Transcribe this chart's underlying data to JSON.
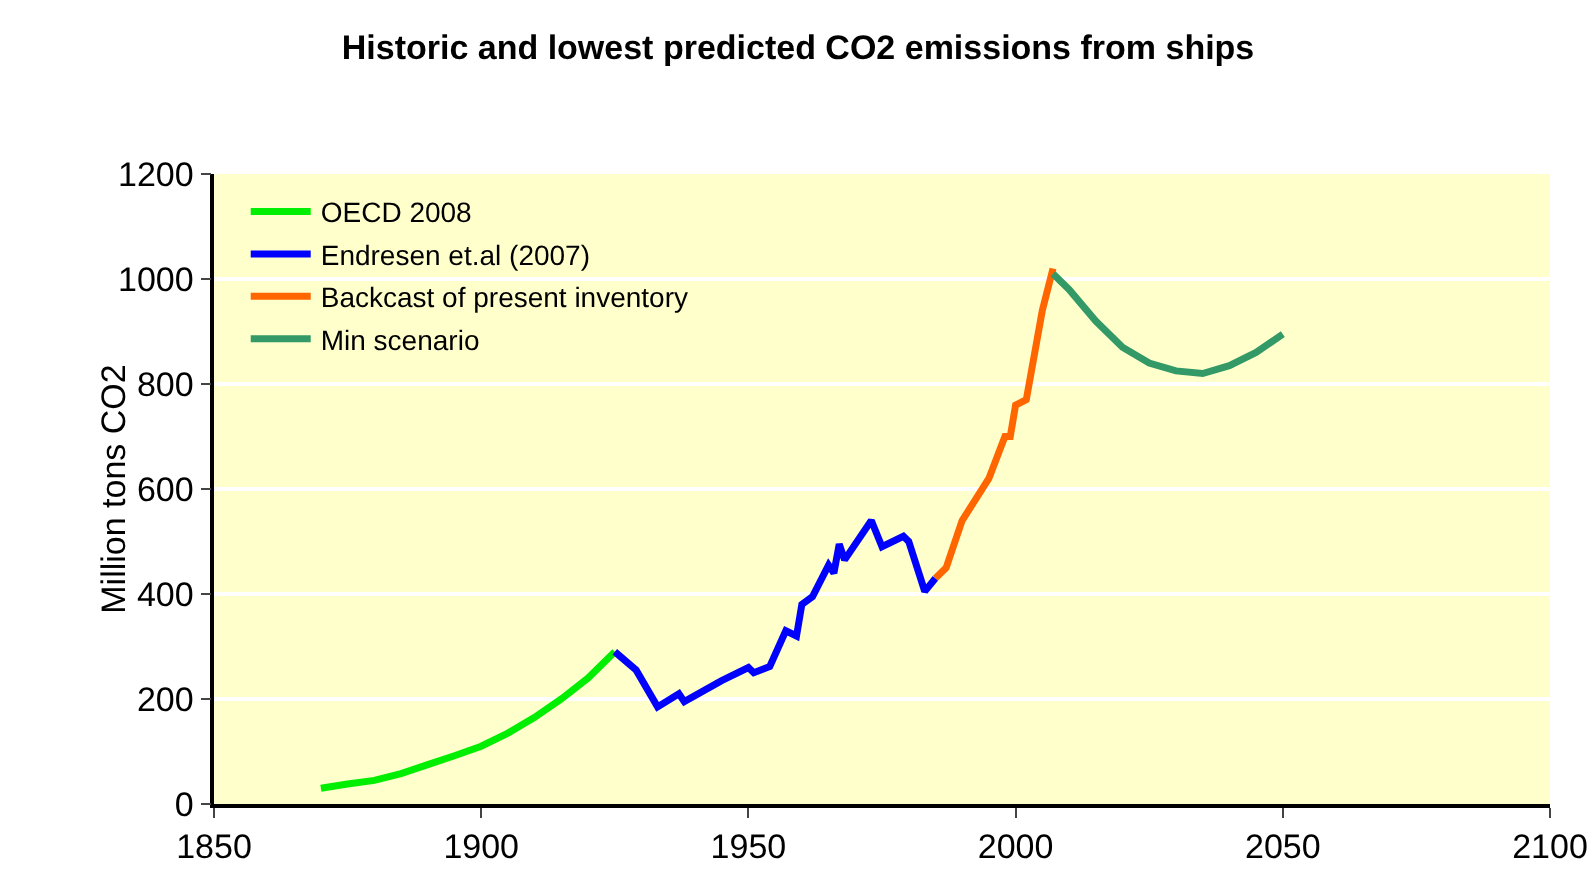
{
  "chart_data": {
    "type": "line",
    "title": "Historic and lowest predicted CO2 emissions from ships",
    "ylabel": "Million tons CO2",
    "xlim": [
      1850,
      2100
    ],
    "xticks": [
      1850,
      1900,
      1950,
      2000,
      2050,
      2100
    ],
    "ylim": [
      0,
      1200
    ],
    "yticks": [
      0,
      200,
      400,
      600,
      800,
      1000,
      1200
    ],
    "grid": "y",
    "legend": "top left",
    "marker": "none",
    "line_style": "solid",
    "series": [
      {
        "name": "OECD 2008",
        "color": "#00ee00",
        "x": [
          1870,
          1875,
          1880,
          1885,
          1890,
          1895,
          1900,
          1905,
          1910,
          1915,
          1920,
          1925
        ],
        "values": [
          30,
          38,
          45,
          58,
          75,
          92,
          110,
          135,
          165,
          200,
          240,
          290
        ]
      },
      {
        "name": "Endresen et.al (2007)",
        "color": "#0000ff",
        "x": [
          1925,
          1929,
          1933,
          1937,
          1938,
          1945,
          1950,
          1951,
          1954,
          1957,
          1959,
          1960,
          1962,
          1965,
          1966,
          1967,
          1968,
          1973,
          1975,
          1979,
          1980,
          1983,
          1985
        ],
        "values": [
          290,
          255,
          185,
          210,
          195,
          235,
          260,
          250,
          262,
          330,
          320,
          380,
          395,
          455,
          440,
          495,
          465,
          540,
          490,
          510,
          500,
          405,
          430
        ]
      },
      {
        "name": "Backcast of present inventory",
        "color": "#ff6600",
        "x": [
          1985,
          1987,
          1990,
          1995,
          1998,
          1999,
          2000,
          2002,
          2005,
          2007
        ],
        "values": [
          430,
          450,
          540,
          620,
          700,
          700,
          760,
          770,
          940,
          1020
        ]
      },
      {
        "name": "Min scenario",
        "color": "#339966",
        "x": [
          2007,
          2010,
          2015,
          2020,
          2025,
          2030,
          2035,
          2040,
          2045,
          2050
        ],
        "values": [
          1010,
          980,
          920,
          870,
          840,
          825,
          820,
          835,
          860,
          895
        ]
      }
    ]
  }
}
